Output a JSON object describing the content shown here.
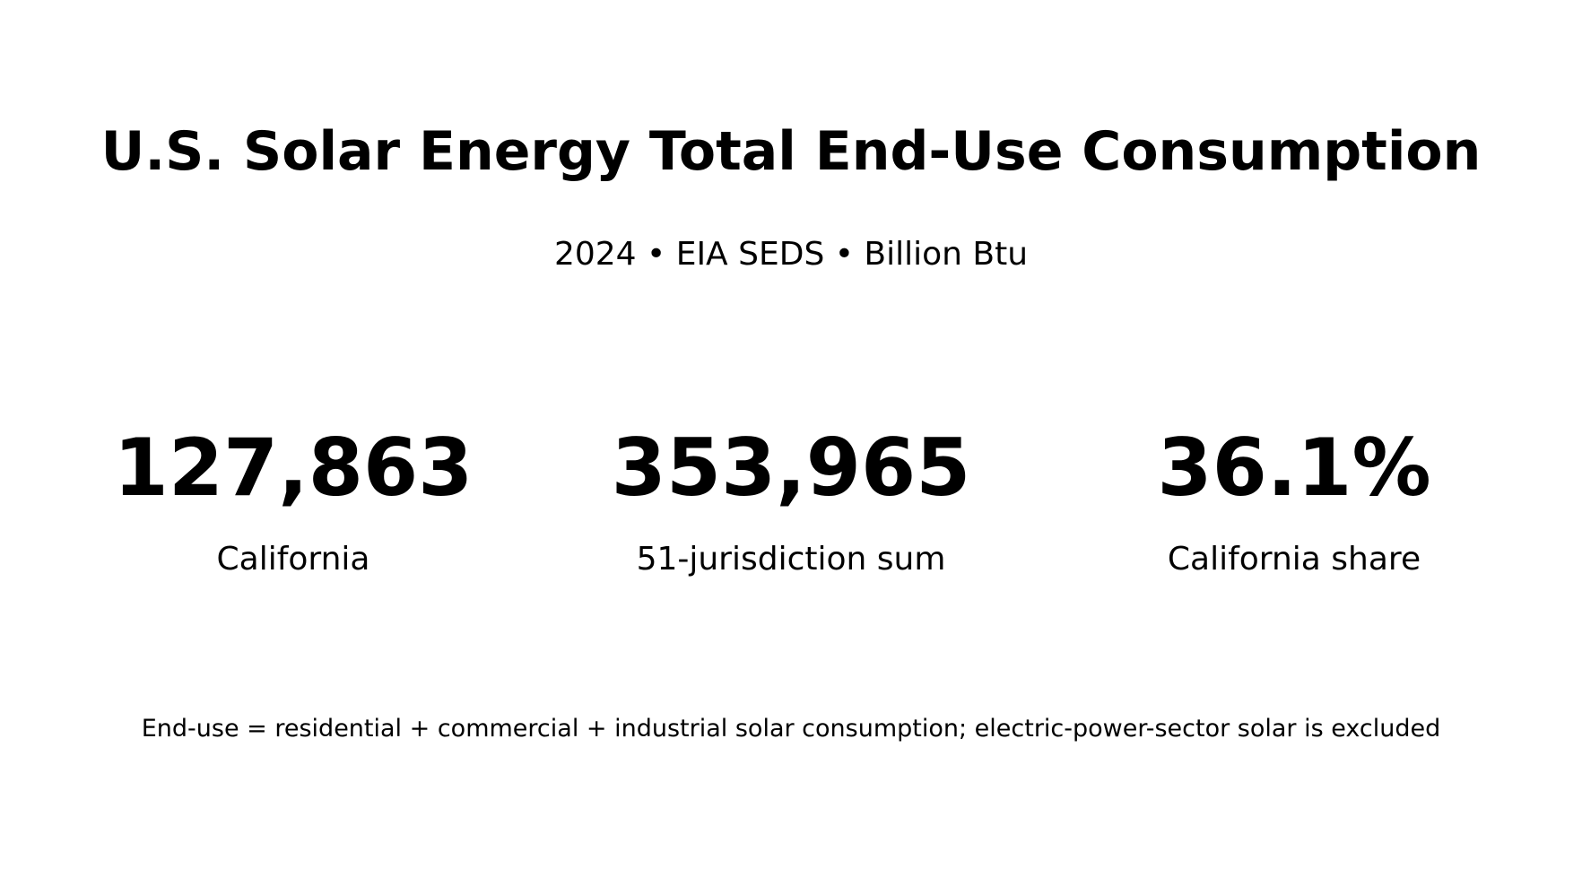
{
  "chart_data": {
    "type": "table",
    "title": "U.S. Solar Energy Total End-Use Consumption",
    "subtitle": "2024 • EIA SEDS • Billion Btu",
    "kpis": [
      {
        "value": "127,863",
        "label": "California"
      },
      {
        "value": "353,965",
        "label": "51-jurisdiction sum"
      },
      {
        "value": "36.1%",
        "label": "California share"
      }
    ],
    "footnote": "End-use = residential + commercial + industrial solar consumption; electric-power-sector solar is excluded"
  }
}
